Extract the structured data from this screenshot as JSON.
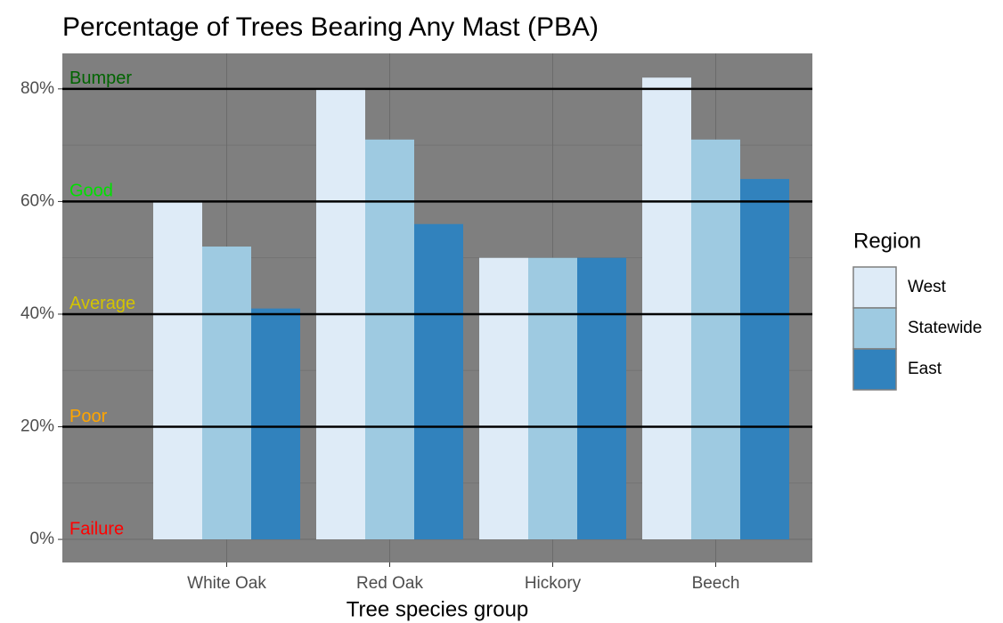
{
  "chart_data": {
    "type": "bar",
    "title": "Percentage of Trees Bearing Any Mast (PBA)",
    "x_label": "Tree species group",
    "categories": [
      "White Oak",
      "Red Oak",
      "Hickory",
      "Beech"
    ],
    "series": [
      {
        "name": "West",
        "color": "#deebf7",
        "values": [
          60,
          80,
          50,
          82
        ]
      },
      {
        "name": "Statewide",
        "color": "#9ecae1",
        "values": [
          52,
          71,
          50,
          71
        ]
      },
      {
        "name": "East",
        "color": "#3182bd",
        "values": [
          41,
          56,
          50,
          64
        ]
      }
    ],
    "legend_title": "Region",
    "legend_position": "right",
    "ylim": [
      -4.1,
      86.3
    ],
    "yticks": [
      {
        "value": 0,
        "label": "0%"
      },
      {
        "value": 20,
        "label": "20%"
      },
      {
        "value": 40,
        "label": "40%"
      },
      {
        "value": 60,
        "label": "60%"
      },
      {
        "value": 80,
        "label": "80%"
      }
    ],
    "minor_yticks": [
      10,
      30,
      50,
      70
    ],
    "grid": true,
    "thresholds": [
      {
        "label": "Failure",
        "value": 0,
        "color": "#ff0000"
      },
      {
        "label": "Poor",
        "value": 20,
        "color": "#ffa500"
      },
      {
        "label": "Average",
        "value": 40,
        "color": "#d4c400"
      },
      {
        "label": "Good",
        "value": 60,
        "color": "#00e000"
      },
      {
        "label": "Bumper",
        "value": 80,
        "color": "#006400"
      }
    ]
  }
}
